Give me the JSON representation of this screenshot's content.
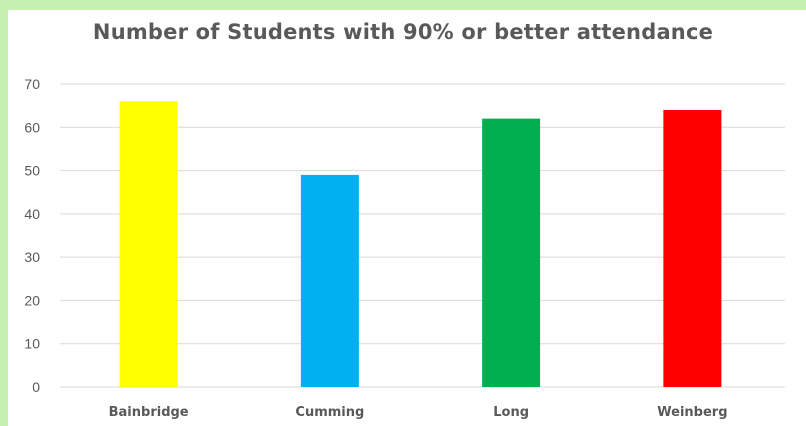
{
  "chart_data": {
    "type": "bar",
    "title": "Number of Students with 90% or better attendance",
    "xlabel": "",
    "ylabel": "",
    "categories": [
      "Bainbridge",
      "Cumming",
      "Long",
      "Weinberg"
    ],
    "values": [
      66,
      49,
      62,
      64
    ],
    "colors": [
      "#ffff00",
      "#00b0f0",
      "#00b050",
      "#ff0000"
    ],
    "ylim": [
      0,
      70
    ],
    "yticks": [
      0,
      10,
      20,
      30,
      40,
      50,
      60,
      70
    ],
    "grid": true,
    "legend": "none"
  },
  "style": {
    "page_background": "#c6efb2",
    "plot_background": "#ffffff",
    "gridline_color": "#d9d9d9",
    "text_color": "#595959"
  }
}
